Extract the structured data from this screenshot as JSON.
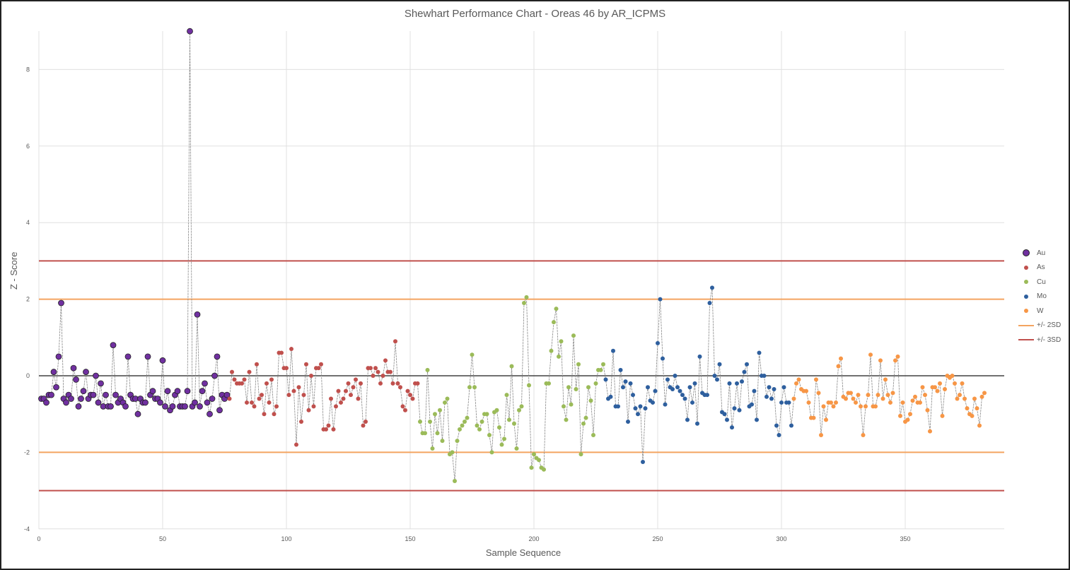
{
  "chart_data": {
    "type": "scatter",
    "title": "Shewhart Performance Chart - Oreas 46 by AR_ICPMS",
    "xlabel": "Sample Sequence",
    "ylabel": "Z - Score",
    "xlim": [
      0,
      390
    ],
    "ylim": [
      -4,
      9
    ],
    "x_ticks": [
      0,
      50,
      100,
      150,
      200,
      250,
      300,
      350
    ],
    "y_ticks": [
      8,
      6,
      4,
      2,
      0,
      -2,
      -4
    ],
    "grid": {
      "x": true,
      "y": true
    },
    "legend_position": "right",
    "reference_lines": [
      {
        "name": "+/- 2SD",
        "values": [
          2,
          -2
        ],
        "color": "#f4a460"
      },
      {
        "name": "+/- 3SD",
        "values": [
          3,
          -3
        ],
        "color": "#c0504d"
      },
      {
        "name": "zero",
        "values": [
          0
        ],
        "color": "#404040"
      }
    ],
    "series": [
      {
        "name": "Au",
        "color": "#7030a0",
        "marker": "large",
        "x_start": 1,
        "values": [
          -0.6,
          -0.6,
          -0.7,
          -0.5,
          -0.5,
          0.1,
          -0.3,
          0.5,
          1.9,
          -0.6,
          -0.7,
          -0.5,
          -0.6,
          0.2,
          -0.1,
          -0.8,
          -0.6,
          -0.4,
          0.1,
          -0.6,
          -0.5,
          -0.5,
          0.0,
          -0.7,
          -0.2,
          -0.8,
          -0.5,
          -0.8,
          -0.8,
          0.8,
          -0.5,
          -0.7,
          -0.6,
          -0.7,
          -0.8,
          0.5,
          -0.5,
          -0.6,
          -0.6,
          -1.0,
          -0.6,
          -0.7,
          -0.7,
          0.5,
          -0.5,
          -0.4,
          -0.6,
          -0.6,
          -0.7,
          0.4,
          -0.8,
          -0.4,
          -0.9,
          -0.8,
          -0.5,
          -0.4,
          -0.8,
          -0.8,
          -0.8,
          -0.4,
          9.0,
          -0.8,
          -0.7,
          1.6,
          -0.8,
          -0.4,
          -0.2,
          -0.7,
          -1.0,
          -0.6,
          0.0,
          0.5,
          -0.9,
          -0.5,
          -0.6,
          -0.5
        ]
      },
      {
        "name": "As",
        "color": "#c0504d",
        "marker": "small",
        "x_start": 77,
        "values": [
          -0.6,
          0.1,
          -0.1,
          -0.2,
          -0.2,
          -0.2,
          -0.1,
          -0.7,
          0.1,
          -0.7,
          -0.8,
          0.3,
          -0.6,
          -0.5,
          -1.0,
          -0.2,
          -0.7,
          -0.1,
          -1.0,
          -0.8,
          0.6,
          0.6,
          0.2,
          0.2,
          -0.5,
          0.7,
          -0.4,
          -1.8,
          -0.3,
          -1.2,
          -0.5,
          0.3,
          -0.9,
          0.0,
          -0.8,
          0.2,
          0.2,
          0.3,
          -1.4,
          -1.4,
          -1.3,
          -0.6,
          -1.4,
          -0.8,
          -0.4,
          -0.7,
          -0.6,
          -0.4,
          -0.2,
          -0.5,
          -0.3,
          -0.1,
          -0.6,
          -0.2,
          -1.3,
          -1.2,
          0.2,
          0.2,
          0.0,
          0.2,
          0.1,
          -0.2,
          0.0,
          0.4,
          0.1,
          0.1,
          -0.2,
          0.9,
          -0.2,
          -0.3,
          -0.8,
          -0.9,
          -0.4,
          -0.5,
          -0.6,
          -0.2,
          -0.2
        ]
      },
      {
        "name": "Cu",
        "color": "#9bbb59",
        "marker": "small",
        "x_start": 154,
        "values": [
          -1.2,
          -1.5,
          -1.5,
          0.15,
          -1.2,
          -1.9,
          -1.0,
          -1.5,
          -0.9,
          -1.7,
          -0.7,
          -0.6,
          -2.05,
          -2.0,
          -2.75,
          -1.7,
          -1.4,
          -1.3,
          -1.2,
          -1.1,
          -0.3,
          0.55,
          -0.3,
          -1.3,
          -1.4,
          -1.2,
          -1.0,
          -1.0,
          -1.55,
          -2.0,
          -0.95,
          -0.9,
          -1.35,
          -1.8,
          -1.65,
          -0.5,
          -1.15,
          0.25,
          -1.25,
          -1.9,
          -0.9,
          -0.8,
          1.9,
          2.05,
          -0.25,
          -2.4,
          -2.05,
          -2.15,
          -2.2,
          -2.4,
          -2.45,
          -0.2,
          -0.2,
          0.65,
          1.4,
          1.75,
          0.5,
          0.9,
          -0.8,
          -1.15,
          -0.3,
          -0.75,
          1.05,
          -0.35,
          0.3,
          -2.05,
          -1.25,
          -1.1,
          -0.3,
          -0.65,
          -1.55,
          -0.2,
          0.15,
          0.15,
          0.3
        ]
      },
      {
        "name": "Mo",
        "color": "#2e5f9e",
        "marker": "small",
        "x_start": 229,
        "values": [
          -0.1,
          -0.6,
          -0.55,
          0.65,
          -0.8,
          -0.8,
          0.15,
          -0.3,
          -0.15,
          -1.2,
          -0.2,
          -0.5,
          -0.85,
          -1.0,
          -0.8,
          -2.25,
          -0.85,
          -0.3,
          -0.65,
          -0.7,
          -0.4,
          0.85,
          2.0,
          0.45,
          -0.75,
          -0.1,
          -0.3,
          -0.35,
          0.0,
          -0.3,
          -0.4,
          -0.5,
          -0.6,
          -1.15,
          -0.3,
          -0.7,
          -0.2,
          -1.25,
          0.5,
          -0.45,
          -0.5,
          -0.5,
          1.9,
          2.3,
          0.0,
          -0.1,
          0.3,
          -0.95,
          -1.0,
          -1.15,
          -0.2,
          -1.35,
          -0.85,
          -0.2,
          -0.9,
          -0.15,
          0.1,
          0.3,
          -0.8,
          -0.75,
          -0.4,
          -1.15,
          0.6,
          0.0,
          0.0,
          -0.55,
          -0.3,
          -0.6,
          -0.35,
          -1.3,
          -1.55,
          -0.7,
          -0.3,
          -0.7,
          -0.7,
          -1.3
        ]
      },
      {
        "name": "W",
        "color": "#f79646",
        "marker": "small",
        "x_start": 305,
        "values": [
          -0.6,
          -0.2,
          -0.1,
          -0.35,
          -0.4,
          -0.4,
          -0.7,
          -1.1,
          -1.1,
          -0.1,
          -0.45,
          -1.55,
          -0.8,
          -1.15,
          -0.7,
          -0.7,
          -0.8,
          -0.7,
          0.25,
          0.45,
          -0.55,
          -0.6,
          -0.45,
          -0.45,
          -0.6,
          -0.7,
          -0.5,
          -0.8,
          -1.55,
          -0.8,
          -0.5,
          0.55,
          -0.8,
          -0.8,
          -0.5,
          0.4,
          -0.6,
          -0.1,
          -0.5,
          -0.7,
          -0.45,
          0.4,
          0.5,
          -1.05,
          -0.7,
          -1.2,
          -1.15,
          -1.0,
          -0.65,
          -0.55,
          -0.7,
          -0.7,
          -0.3,
          -0.5,
          -0.9,
          -1.45,
          -0.3,
          -0.3,
          -0.4,
          -0.2,
          -1.05,
          -0.35,
          0.0,
          -0.05,
          0.0,
          -0.2,
          -0.6,
          -0.5,
          -0.2,
          -0.6,
          -0.85,
          -1.0,
          -1.05,
          -0.6,
          -0.85,
          -1.3,
          -0.55,
          -0.45
        ]
      }
    ]
  },
  "legend": {
    "items": [
      {
        "label": "Au",
        "type": "dot-large",
        "color": "#7030a0"
      },
      {
        "label": "As",
        "type": "dot",
        "color": "#c0504d"
      },
      {
        "label": "Cu",
        "type": "dot",
        "color": "#9bbb59"
      },
      {
        "label": "Mo",
        "type": "dot",
        "color": "#2e5f9e"
      },
      {
        "label": "W",
        "type": "dot",
        "color": "#f79646"
      },
      {
        "label": "+/- 2SD",
        "type": "line",
        "color": "#f4a460"
      },
      {
        "label": "+/- 3SD",
        "type": "line",
        "color": "#c0504d"
      }
    ]
  }
}
